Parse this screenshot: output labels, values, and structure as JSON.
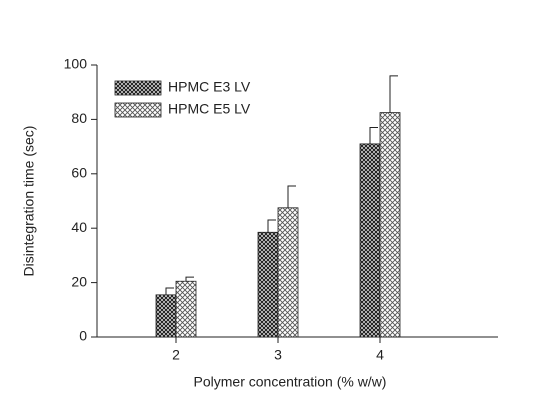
{
  "chart_data": {
    "type": "bar",
    "xlabel": "Polymer concentration (% w/w)",
    "ylabel": "Disintegration time (sec)",
    "categories": [
      "2",
      "3",
      "4"
    ],
    "series": [
      {
        "name": "HPMC E3 LV",
        "color": "#222222",
        "values": [
          15.5,
          38.5,
          71
        ],
        "errors": [
          2.5,
          4.5,
          6
        ]
      },
      {
        "name": "HPMC E5 LV",
        "color": "#555555",
        "values": [
          20.5,
          47.5,
          82.5
        ],
        "errors": [
          1.5,
          8,
          13.5
        ]
      }
    ],
    "ylim": [
      0,
      100
    ],
    "yticks": [
      0,
      20,
      40,
      60,
      80,
      100
    ],
    "legend": "upper-left"
  }
}
